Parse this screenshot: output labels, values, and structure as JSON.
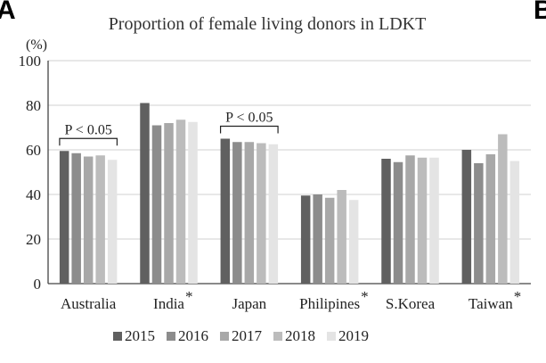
{
  "panel_labels": {
    "left": "A",
    "right": "B"
  },
  "chart_data": {
    "type": "bar",
    "title": "Proportion of female living donors in LDKT",
    "ylabel": "(%)",
    "xlabel": "",
    "ylim": [
      0,
      100
    ],
    "yticks": [
      0,
      20,
      40,
      60,
      80,
      100
    ],
    "grid": true,
    "legend_position": "bottom",
    "categories": [
      "Australia",
      "India",
      "Japan",
      "Philipines",
      "S.Korea",
      "Taiwan"
    ],
    "significance_marks": [
      "",
      "*",
      "",
      "*",
      "",
      "*"
    ],
    "series": [
      {
        "name": "2015",
        "color": "#606060",
        "values": [
          59.5,
          81,
          65,
          39.5,
          56,
          60
        ]
      },
      {
        "name": "2016",
        "color": "#8c8c8c",
        "values": [
          58.5,
          71,
          63.5,
          40,
          54.5,
          54
        ]
      },
      {
        "name": "2017",
        "color": "#a8a8a8",
        "values": [
          57,
          72,
          63.5,
          38.5,
          57.5,
          58
        ]
      },
      {
        "name": "2018",
        "color": "#bcbcbc",
        "values": [
          57.5,
          73.5,
          63,
          42,
          56.5,
          67
        ]
      },
      {
        "name": "2019",
        "color": "#e4e4e4",
        "values": [
          55.5,
          72.5,
          62.5,
          37.5,
          56.5,
          55
        ]
      }
    ],
    "annotations": [
      {
        "text": "P < 0.05",
        "category_index": 0
      },
      {
        "text": "P < 0.05",
        "category_index": 2
      }
    ]
  }
}
